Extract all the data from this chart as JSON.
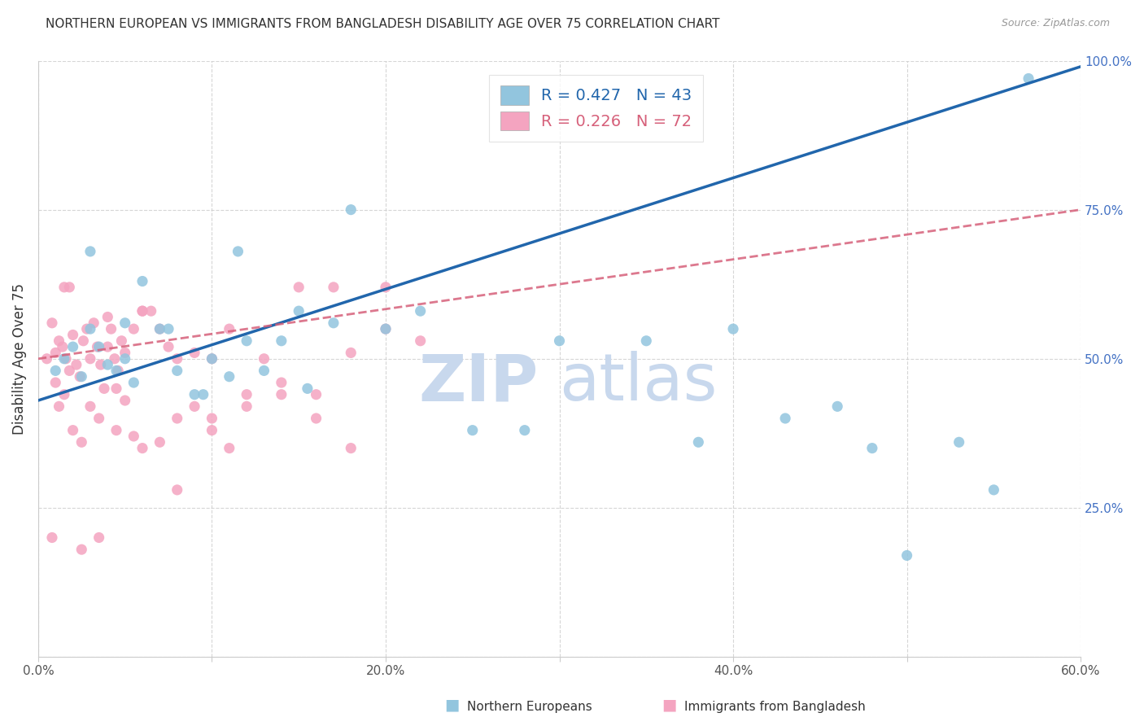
{
  "title": "NORTHERN EUROPEAN VS IMMIGRANTS FROM BANGLADESH DISABILITY AGE OVER 75 CORRELATION CHART",
  "source": "Source: ZipAtlas.com",
  "ylabel": "Disability Age Over 75",
  "xmin": 0.0,
  "xmax": 60.0,
  "ymin": 0.0,
  "ymax": 100.0,
  "blue_R": 0.427,
  "blue_N": 43,
  "pink_R": 0.226,
  "pink_N": 72,
  "blue_color": "#92c5de",
  "pink_color": "#f4a4c0",
  "blue_line_color": "#2166ac",
  "pink_line_color": "#d6607a",
  "watermark_zip": "ZIP",
  "watermark_atlas": "atlas",
  "blue_line_x0": 0.0,
  "blue_line_y0": 43.0,
  "blue_line_x1": 60.0,
  "blue_line_y1": 99.0,
  "pink_line_x0": 0.0,
  "pink_line_y0": 50.0,
  "pink_line_x1": 60.0,
  "pink_line_y1": 75.0,
  "blue_points_x": [
    1.0,
    1.5,
    2.0,
    2.5,
    3.0,
    3.5,
    4.0,
    4.5,
    5.0,
    5.5,
    6.0,
    7.0,
    8.0,
    9.0,
    10.0,
    11.0,
    12.0,
    13.0,
    14.0,
    15.0,
    17.0,
    20.0,
    22.0,
    25.0,
    28.0,
    30.0,
    35.0,
    38.0,
    40.0,
    43.0,
    46.0,
    48.0,
    50.0,
    53.0,
    55.0,
    57.0,
    3.0,
    5.0,
    7.5,
    9.5,
    11.5,
    15.5,
    18.0
  ],
  "blue_points_y": [
    48.0,
    50.0,
    52.0,
    47.0,
    55.0,
    52.0,
    49.0,
    48.0,
    50.0,
    46.0,
    63.0,
    55.0,
    48.0,
    44.0,
    50.0,
    47.0,
    53.0,
    48.0,
    53.0,
    58.0,
    56.0,
    55.0,
    58.0,
    38.0,
    38.0,
    53.0,
    53.0,
    36.0,
    55.0,
    40.0,
    42.0,
    35.0,
    17.0,
    36.0,
    28.0,
    97.0,
    68.0,
    56.0,
    55.0,
    44.0,
    68.0,
    45.0,
    75.0
  ],
  "pink_points_x": [
    0.5,
    0.8,
    1.0,
    1.2,
    1.4,
    1.5,
    1.6,
    1.8,
    2.0,
    2.2,
    2.4,
    2.6,
    2.8,
    3.0,
    3.2,
    3.4,
    3.6,
    3.8,
    4.0,
    4.2,
    4.4,
    4.6,
    4.8,
    5.0,
    5.5,
    6.0,
    6.5,
    7.0,
    7.5,
    8.0,
    9.0,
    10.0,
    11.0,
    12.0,
    13.0,
    14.0,
    15.0,
    16.0,
    17.0,
    18.0,
    20.0,
    22.0,
    1.0,
    1.5,
    2.0,
    2.5,
    3.0,
    3.5,
    4.0,
    4.5,
    5.0,
    5.5,
    6.0,
    7.0,
    8.0,
    9.0,
    10.0,
    11.0,
    12.0,
    14.0,
    16.0,
    18.0,
    20.0,
    0.8,
    1.2,
    1.8,
    2.5,
    3.5,
    4.5,
    6.0,
    8.0,
    10.0
  ],
  "pink_points_y": [
    50.0,
    56.0,
    51.0,
    53.0,
    52.0,
    62.0,
    50.0,
    48.0,
    54.0,
    49.0,
    47.0,
    53.0,
    55.0,
    50.0,
    56.0,
    52.0,
    49.0,
    45.0,
    57.0,
    55.0,
    50.0,
    48.0,
    53.0,
    51.0,
    55.0,
    58.0,
    58.0,
    55.0,
    52.0,
    50.0,
    51.0,
    50.0,
    55.0,
    44.0,
    50.0,
    44.0,
    62.0,
    40.0,
    62.0,
    51.0,
    55.0,
    53.0,
    46.0,
    44.0,
    38.0,
    36.0,
    42.0,
    40.0,
    52.0,
    45.0,
    43.0,
    37.0,
    35.0,
    36.0,
    40.0,
    42.0,
    38.0,
    35.0,
    42.0,
    46.0,
    44.0,
    35.0,
    62.0,
    20.0,
    42.0,
    62.0,
    18.0,
    20.0,
    38.0,
    58.0,
    28.0,
    40.0
  ]
}
